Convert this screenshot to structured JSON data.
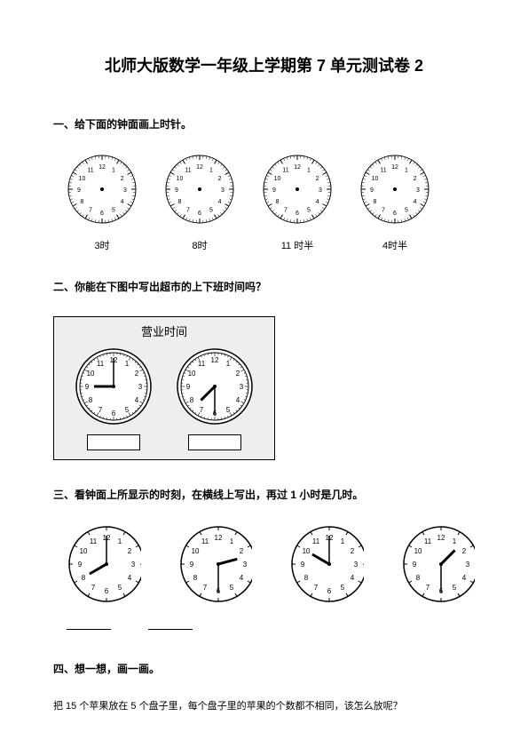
{
  "title": "北师大版数学一年级上学期第 7 单元测试卷 2",
  "q1": {
    "heading": "一、给下面的钟面画上时针。",
    "clocks": [
      {
        "hour": null,
        "minute": null,
        "label": "3时"
      },
      {
        "hour": null,
        "minute": null,
        "label": "8时"
      },
      {
        "hour": null,
        "minute": null,
        "label": "11 时半"
      },
      {
        "hour": null,
        "minute": null,
        "label": "4时半"
      }
    ],
    "clock_style": {
      "radius": 38,
      "tick_ring": true,
      "bg": "#ffffff",
      "border_color": "#000000",
      "number_fontsize": 7
    }
  },
  "q2": {
    "heading": "二、你能在下图中写出超市的上下班时间吗？",
    "box_title": "营业时间",
    "clocks": [
      {
        "hour": 9,
        "minute": 0
      },
      {
        "hour": 7,
        "minute": 30
      }
    ],
    "clock_style": {
      "radius": 42,
      "double_ring": true,
      "bg": "#ffffff",
      "border_color": "#000000",
      "number_fontsize": 8,
      "box_bg": "#eeeeee",
      "box_border": "#000000"
    }
  },
  "q3": {
    "heading": "三、看钟面上所显示的时刻，在横线上写出，再过 1 小时是几时。",
    "clocks": [
      {
        "hour": 8,
        "minute": 0
      },
      {
        "hour": 2,
        "minute": 30
      },
      {
        "hour": 10,
        "minute": 0
      },
      {
        "hour": 1,
        "minute": 30
      }
    ],
    "clock_style": {
      "radius": 42,
      "bg": "#ffffff",
      "border_color": "#000000",
      "number_fontsize": 8
    }
  },
  "q4": {
    "heading": "四、想一想，画一画。",
    "text": "把 15 个苹果放在 5 个盘子里，每个盘子里的苹果的个数都不相同，该怎么放呢？"
  },
  "colors": {
    "text": "#000000",
    "page_bg": "#ffffff"
  }
}
